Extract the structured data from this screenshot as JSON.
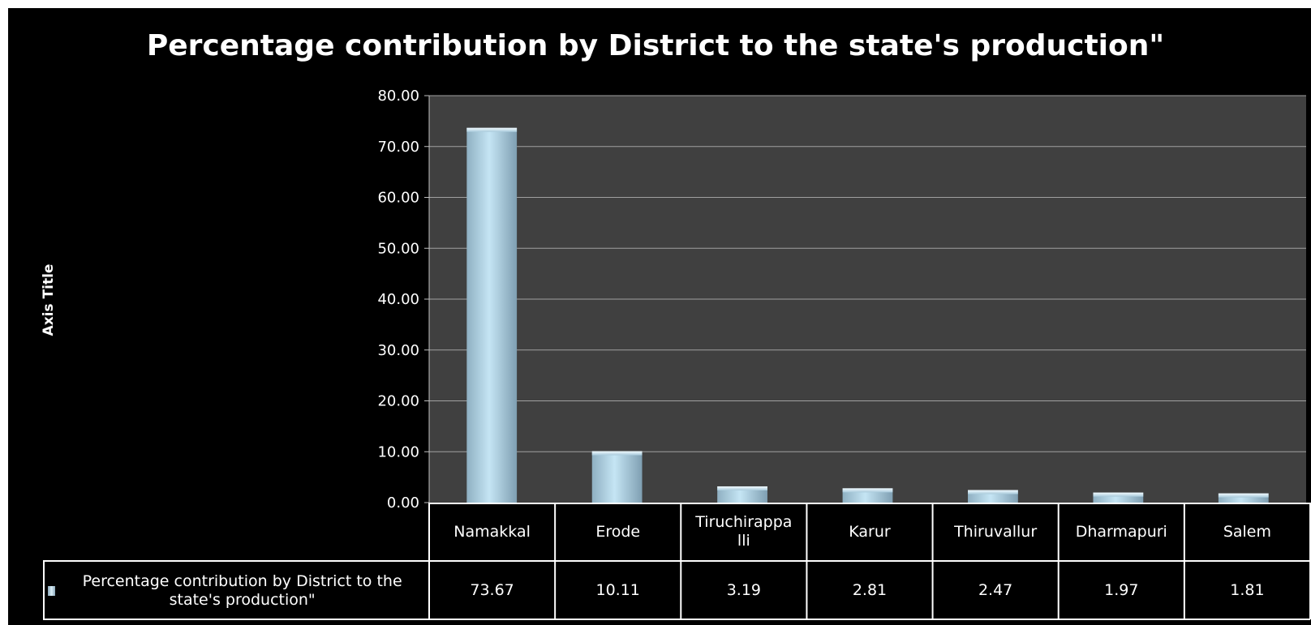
{
  "chart_data": {
    "type": "bar",
    "title": "Percentage contribution by District to the state's production\"",
    "ylabel": "Axis Title",
    "xlabel": "",
    "ylim": [
      0,
      80
    ],
    "yticks": [
      "0.00",
      "10.00",
      "20.00",
      "30.00",
      "40.00",
      "50.00",
      "60.00",
      "70.00",
      "80.00"
    ],
    "grid": true,
    "categories": [
      "Namakkal",
      "Erode",
      "Tiruchirappa\nlli",
      "Karur",
      "Thiruvallur",
      "Dharmapuri",
      "Salem"
    ],
    "series": [
      {
        "name": "Percentage contribution by District to the state's production\"",
        "values": [
          73.67,
          10.11,
          3.19,
          2.81,
          2.47,
          1.97,
          1.81
        ],
        "labels": [
          "73.67",
          "10.11",
          "3.19",
          "2.81",
          "2.47",
          "1.97",
          "1.81"
        ]
      }
    ],
    "data_table": true,
    "colors": {
      "background": "#000000",
      "plot_area": "#404040",
      "bar": "#b8dcee",
      "gridline": "#a0a0a0"
    }
  }
}
